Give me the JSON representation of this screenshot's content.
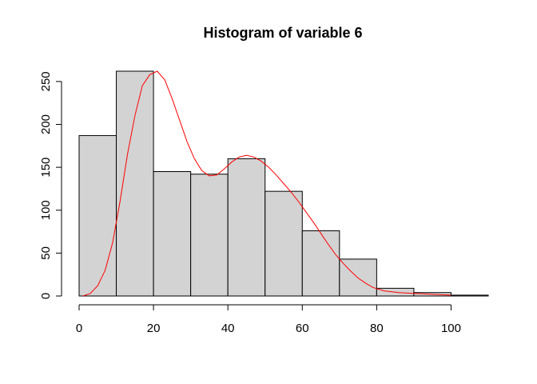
{
  "chart_data": {
    "type": "bar",
    "title": "Histogram of variable 6",
    "xlabel": "",
    "ylabel": "",
    "bins": [
      {
        "start": 0,
        "end": 10,
        "count": 187
      },
      {
        "start": 10,
        "end": 20,
        "count": 262
      },
      {
        "start": 20,
        "end": 30,
        "count": 145
      },
      {
        "start": 30,
        "end": 40,
        "count": 142
      },
      {
        "start": 40,
        "end": 50,
        "count": 160
      },
      {
        "start": 50,
        "end": 60,
        "count": 122
      },
      {
        "start": 60,
        "end": 70,
        "count": 76
      },
      {
        "start": 70,
        "end": 80,
        "count": 43
      },
      {
        "start": 80,
        "end": 90,
        "count": 9
      },
      {
        "start": 90,
        "end": 100,
        "count": 4
      },
      {
        "start": 100,
        "end": 110,
        "count": 1
      }
    ],
    "density_curve": {
      "color": "#ff0000",
      "x": [
        1,
        3,
        5,
        7,
        9,
        11,
        13,
        15,
        17,
        19,
        21,
        23,
        25,
        27,
        29,
        31,
        33,
        35,
        37,
        39,
        41,
        43,
        45,
        47,
        49,
        51,
        53,
        55,
        57,
        59,
        61,
        63,
        65,
        67,
        69,
        71,
        73,
        75,
        77,
        79,
        82,
        86,
        90,
        95,
        100
      ],
      "y": [
        0,
        3,
        12,
        30,
        62,
        110,
        165,
        210,
        245,
        258,
        262,
        252,
        230,
        205,
        180,
        160,
        146,
        140,
        141,
        148,
        156,
        162,
        164,
        162,
        157,
        150,
        141,
        131,
        121,
        110,
        98,
        86,
        73,
        60,
        48,
        38,
        29,
        21,
        15,
        10,
        6,
        4,
        3,
        2,
        1
      ]
    },
    "xlim": [
      0,
      110
    ],
    "ylim": [
      0,
      262
    ],
    "x_ticks": [
      "0",
      "20",
      "40",
      "60",
      "80",
      "100"
    ],
    "y_ticks": [
      "0",
      "50",
      "100",
      "150",
      "200",
      "250"
    ],
    "bar_fill": "#d3d3d3",
    "bar_stroke": "#000000",
    "grid": false,
    "legend": "none"
  }
}
